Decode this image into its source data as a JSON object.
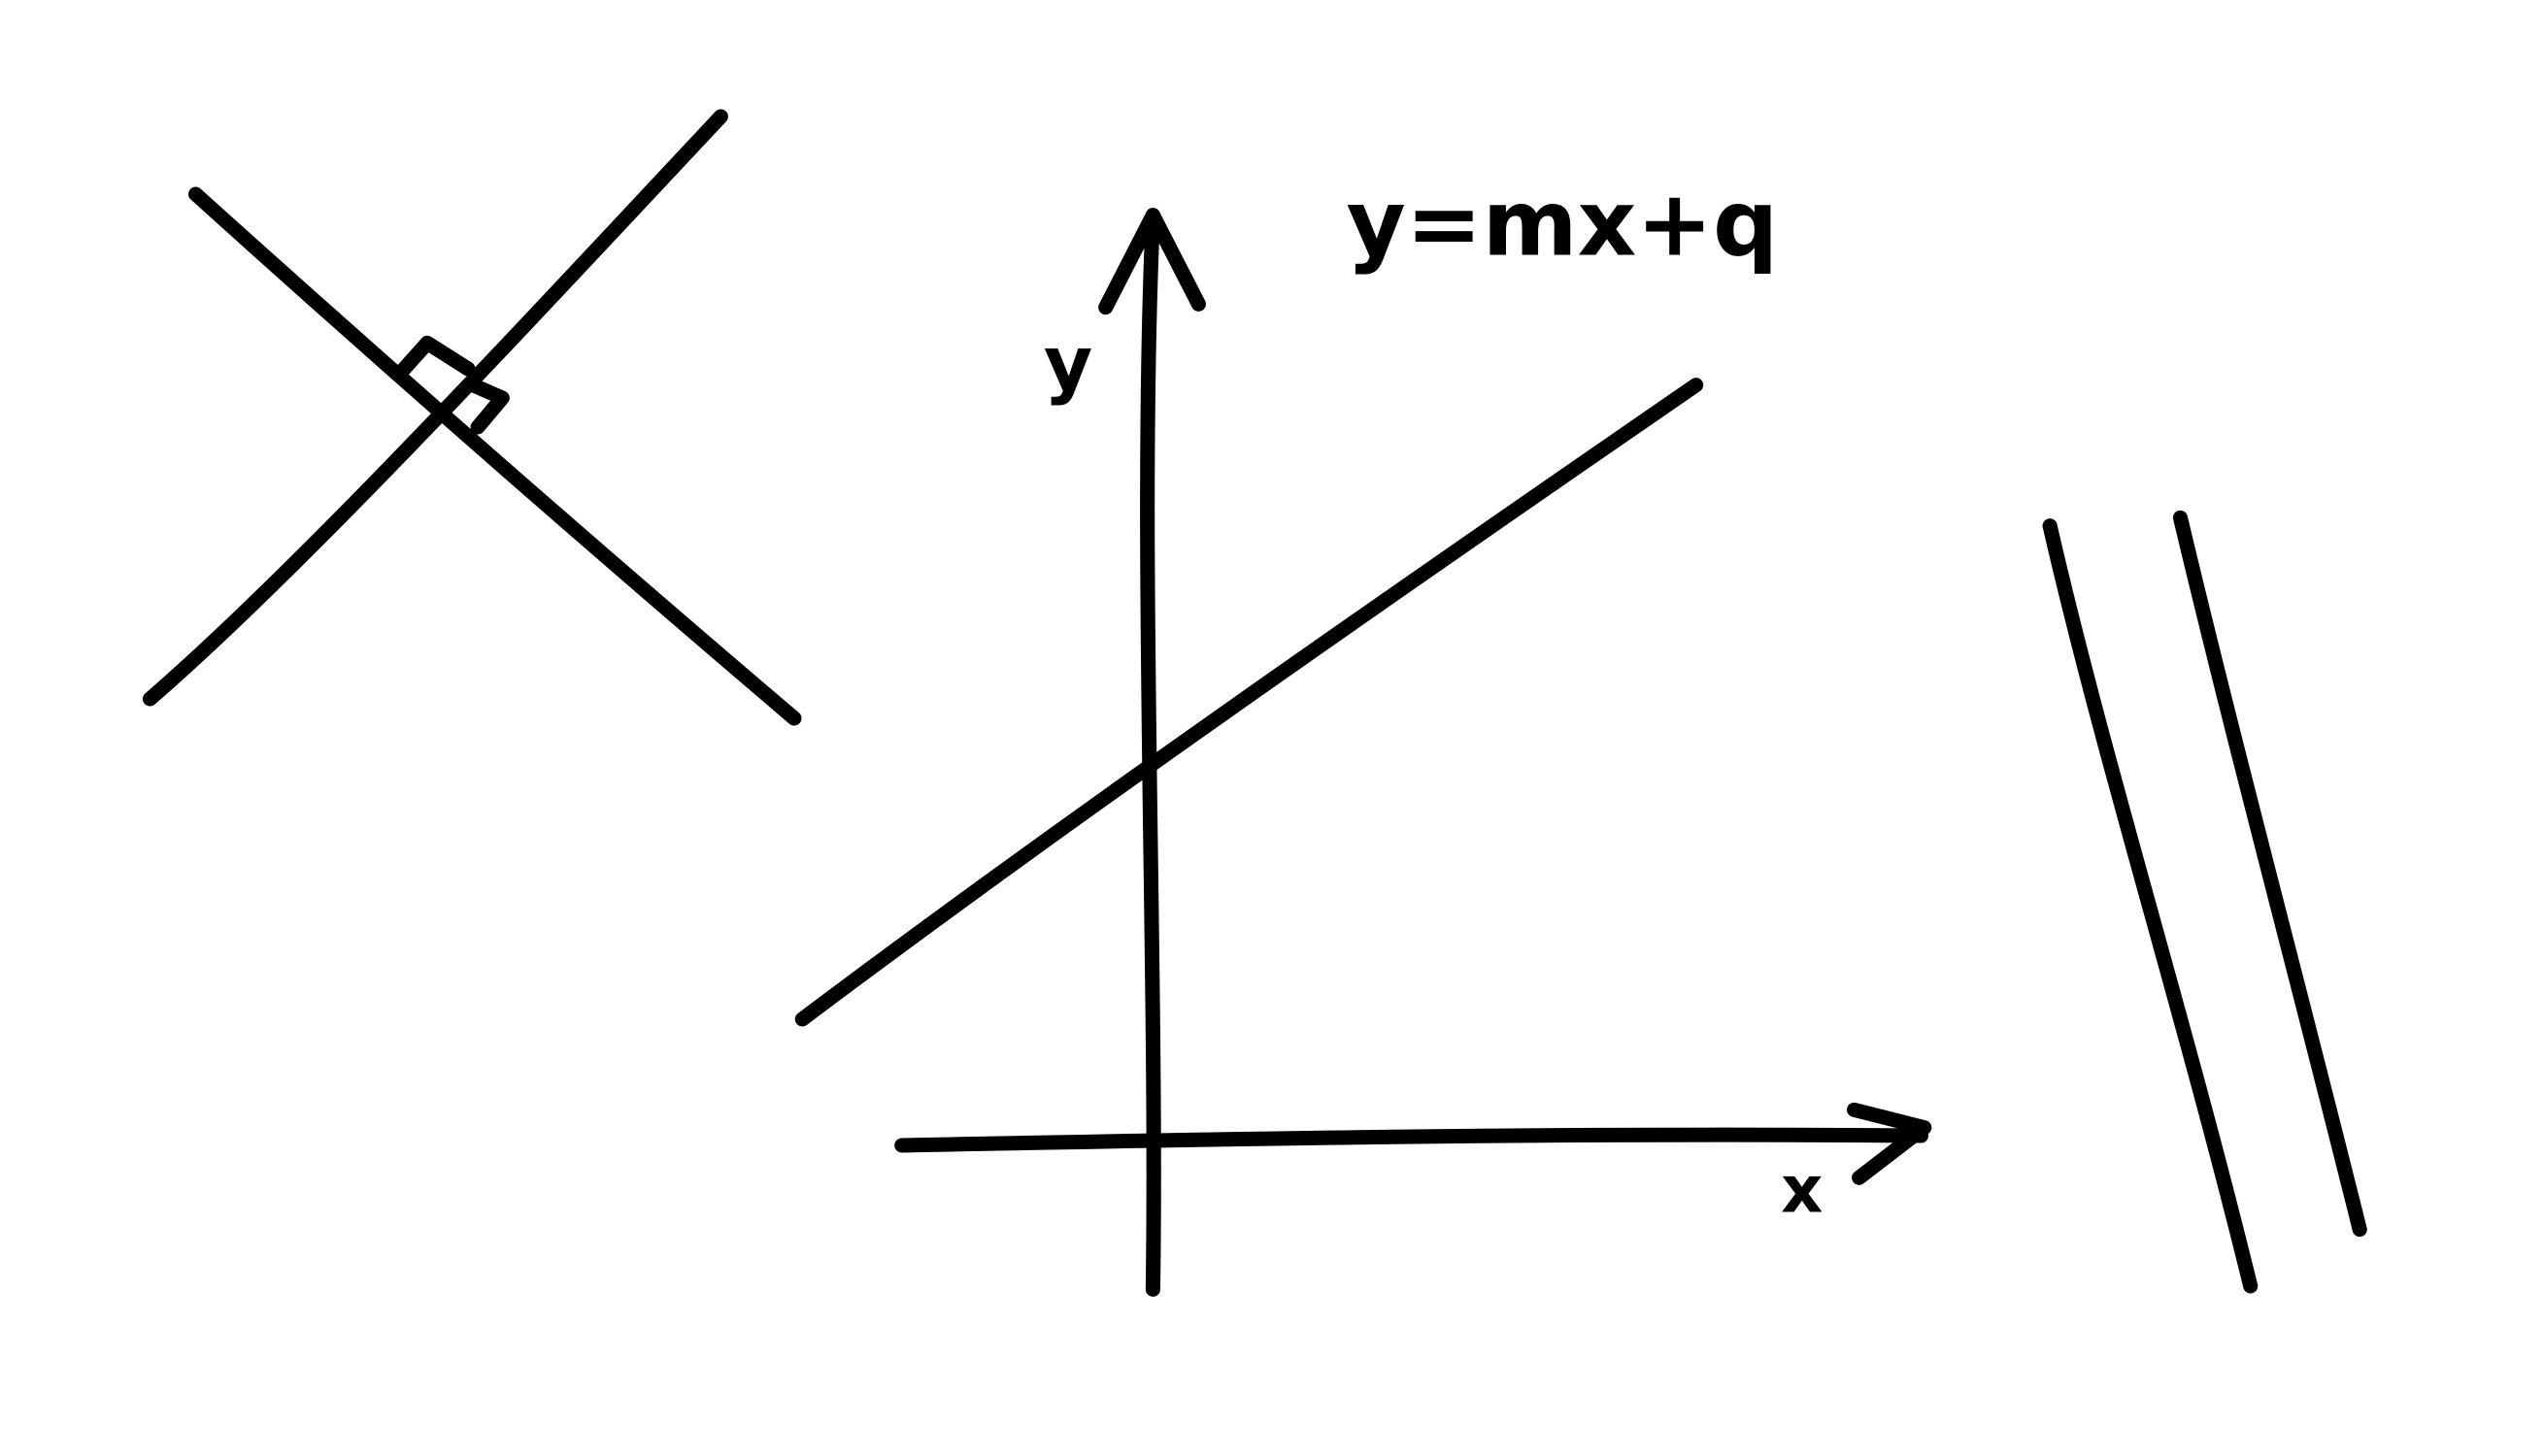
{
  "labels": {
    "equation": "y=mx+q",
    "y_axis": "y",
    "x_axis": "x"
  }
}
